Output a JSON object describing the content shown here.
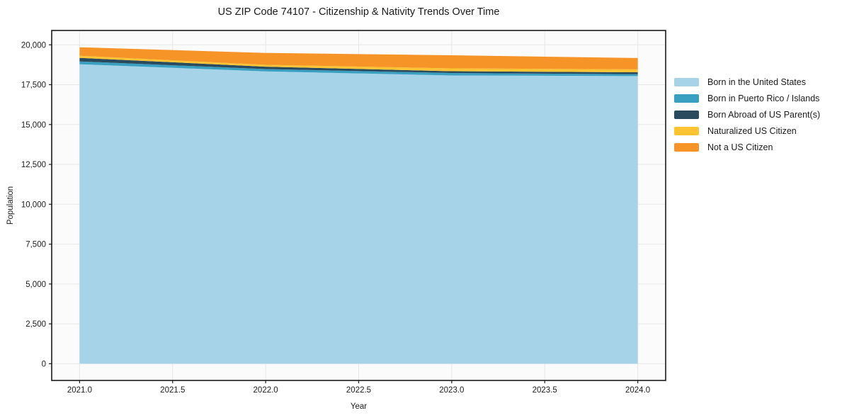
{
  "figure": {
    "background": "#ffffff",
    "plot_background": "#fbfbfb",
    "grid_color": "#e7e7e7",
    "spine_color": "#1a1a1a",
    "text_color": "#1a1a1a"
  },
  "chart_data": {
    "type": "area",
    "stacked": true,
    "title": "US ZIP Code 74107 - Citizenship & Nativity Trends Over Time",
    "xlabel": "Year",
    "ylabel": "Population",
    "x": [
      2021,
      2022,
      2023,
      2024
    ],
    "series": [
      {
        "name": "Born in the United States",
        "color": "#a6d3e8",
        "values": [
          18780,
          18330,
          18080,
          18040
        ]
      },
      {
        "name": "Born in Puerto Rico / Islands",
        "color": "#3aa0c2",
        "values": [
          180,
          150,
          150,
          120
        ]
      },
      {
        "name": "Born Abroad of US Parent(s)",
        "color": "#2a4a5e",
        "values": [
          220,
          150,
          115,
          120
        ]
      },
      {
        "name": "Naturalized US Citizen",
        "color": "#fcc433",
        "values": [
          135,
          115,
          180,
          180
        ]
      },
      {
        "name": "Not a US Citizen",
        "color": "#f79428",
        "values": [
          530,
          745,
          820,
          710
        ]
      }
    ],
    "xlim": [
      2020.85,
      2024.15
    ],
    "ylim": [
      -1050,
      20900
    ],
    "xticks": [
      2021.0,
      2021.5,
      2022.0,
      2022.5,
      2023.0,
      2023.5,
      2024.0
    ],
    "xtick_labels": [
      "2021.0",
      "2021.5",
      "2022.0",
      "2022.5",
      "2023.0",
      "2023.5",
      "2024.0"
    ],
    "yticks": [
      0,
      2500,
      5000,
      7500,
      10000,
      12500,
      15000,
      17500,
      20000
    ],
    "ytick_labels": [
      "0",
      "2,500",
      "5,000",
      "7,500",
      "10,000",
      "12,500",
      "15,000",
      "17,500",
      "20,000"
    ],
    "grid": true,
    "legend_position": "right-outside"
  }
}
